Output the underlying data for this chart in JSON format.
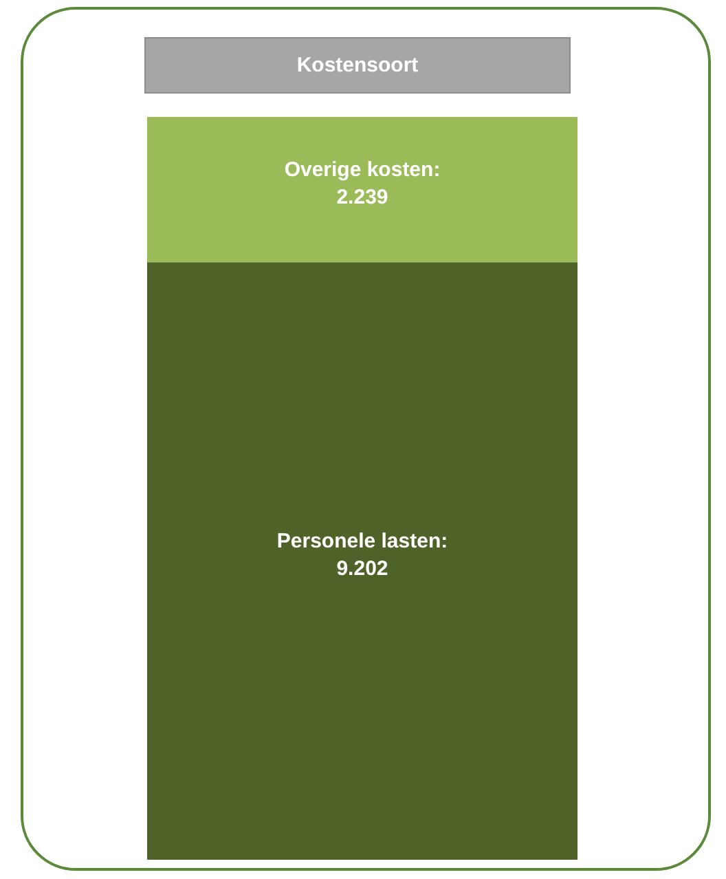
{
  "chart_data": {
    "type": "bar",
    "title": "Kostensoort",
    "stacked": true,
    "categories": [
      null
    ],
    "legend": false,
    "series": [
      {
        "name": "Personele lasten:",
        "color": "#4f6228",
        "values": [
          9202
        ],
        "value_labels": [
          "9.202"
        ]
      },
      {
        "name": "Overige kosten:",
        "color": "#9bbb59",
        "values": [
          2239
        ],
        "value_labels": [
          "2.239"
        ]
      }
    ]
  }
}
